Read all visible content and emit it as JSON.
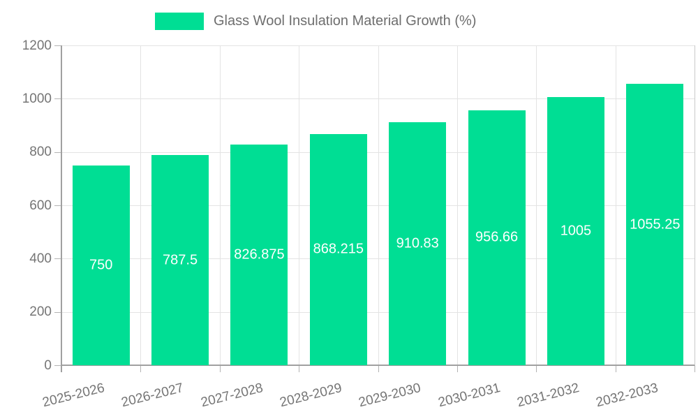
{
  "legend": {
    "label": "Glass Wool Insulation Material Growth (%)",
    "swatch_color": "#00de94"
  },
  "chart_data": {
    "type": "bar",
    "title": "",
    "xlabel": "",
    "ylabel": "",
    "categories": [
      "2025-2026",
      "2026-2027",
      "2027-2028",
      "2028-2029",
      "2029-2030",
      "2030-2031",
      "2031-2032",
      "2032-2033"
    ],
    "series": [
      {
        "name": "Glass Wool Insulation Material Growth (%)",
        "values": [
          750,
          787.5,
          826.875,
          868.215,
          910.83,
          956.66,
          1005,
          1055.25
        ],
        "value_labels": [
          "750",
          "787.5",
          "826.875",
          "868.215",
          "910.83",
          "956.66",
          "1005",
          "1055.25"
        ]
      }
    ],
    "ylim": [
      0,
      1200
    ],
    "yticks": [
      0,
      200,
      400,
      600,
      800,
      1000,
      1200
    ],
    "grid": true,
    "legend_position": "top-center",
    "colors": {
      "bar": "#00de94",
      "value_label": "#ffffff",
      "axis_text": "#757575",
      "gridline": "#e3e3e3",
      "axis_line": "#a0a0a0",
      "right_border": "#c9c9c9",
      "tick": "#b3b3b3",
      "background": "#ffffff"
    }
  }
}
